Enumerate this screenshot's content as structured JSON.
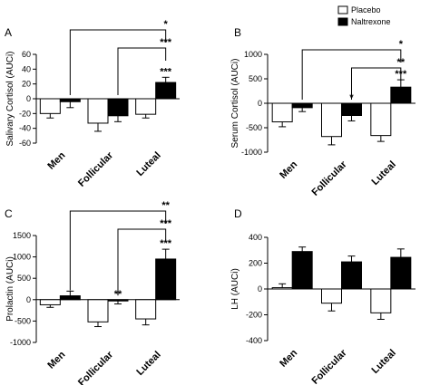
{
  "legend": {
    "placebo": "Placebo",
    "naltrexone": "Naltrexone",
    "placebo_color": "#ffffff",
    "naltrexone_color": "#000000"
  },
  "chart_data": [
    {
      "panel": "A",
      "type": "bar",
      "categories": [
        "Men",
        "Follicular",
        "Luteal"
      ],
      "ylabel": "Salivary Cortisol (AUCi)",
      "ylim": [
        -60,
        60
      ],
      "yticks": [
        -60,
        -40,
        -20,
        0,
        20,
        40,
        60
      ],
      "series": [
        {
          "name": "Placebo",
          "values": [
            -20,
            -33,
            -21
          ],
          "errors": [
            6,
            11,
            5
          ]
        },
        {
          "name": "Naltrexone",
          "values": [
            -4,
            -23,
            22
          ],
          "errors": [
            8,
            8,
            7
          ]
        }
      ],
      "bar_stars": [
        null,
        null,
        null,
        null,
        null,
        "***"
      ],
      "brackets": [
        {
          "from_group": 0,
          "label": "*"
        },
        {
          "from_group": 1,
          "label": "***"
        }
      ]
    },
    {
      "panel": "B",
      "type": "bar",
      "categories": [
        "Men",
        "Follicular",
        "Luteal"
      ],
      "ylabel": "Serum Cortisol (AUCi)",
      "ylim": [
        -1000,
        1000
      ],
      "yticks": [
        -1000,
        -500,
        0,
        500,
        1000
      ],
      "series": [
        {
          "name": "Placebo",
          "values": [
            -380,
            -680,
            -660
          ],
          "errors": [
            100,
            170,
            120
          ]
        },
        {
          "name": "Naltrexone",
          "values": [
            -90,
            -250,
            330
          ],
          "errors": [
            80,
            110,
            150
          ]
        }
      ],
      "bar_stars": [
        null,
        null,
        null,
        "*",
        null,
        "***"
      ],
      "brackets": [
        {
          "from_group": 0,
          "label": "*"
        },
        {
          "from_group": 1,
          "label": "**"
        }
      ]
    },
    {
      "panel": "C",
      "type": "bar",
      "categories": [
        "Men",
        "Follicular",
        "Luteal"
      ],
      "ylabel": "Prolactin (AUCi)",
      "ylim": [
        -1000,
        1500
      ],
      "yticks": [
        -1000,
        -500,
        0,
        500,
        1000,
        1500
      ],
      "series": [
        {
          "name": "Placebo",
          "values": [
            -120,
            -520,
            -450
          ],
          "errors": [
            60,
            110,
            140
          ]
        },
        {
          "name": "Naltrexone",
          "values": [
            90,
            -30,
            950
          ],
          "errors": [
            110,
            70,
            230
          ]
        }
      ],
      "bar_stars": [
        null,
        null,
        null,
        "**",
        null,
        "***"
      ],
      "brackets": [
        {
          "from_group": 0,
          "label": "**"
        },
        {
          "from_group": 1,
          "label": "***"
        }
      ]
    },
    {
      "panel": "D",
      "type": "bar",
      "categories": [
        "Men",
        "Follicular",
        "Luteal"
      ],
      "ylabel": "LH (AUCi)",
      "ylim": [
        -400,
        400
      ],
      "yticks": [
        -400,
        -200,
        0,
        200,
        400
      ],
      "series": [
        {
          "name": "Placebo",
          "values": [
            10,
            -110,
            -185
          ],
          "errors": [
            30,
            60,
            50
          ]
        },
        {
          "name": "Naltrexone",
          "values": [
            290,
            210,
            245
          ],
          "errors": [
            35,
            45,
            65
          ]
        }
      ],
      "bar_stars": [
        null,
        null,
        null,
        null,
        null,
        null
      ],
      "brackets": []
    }
  ]
}
